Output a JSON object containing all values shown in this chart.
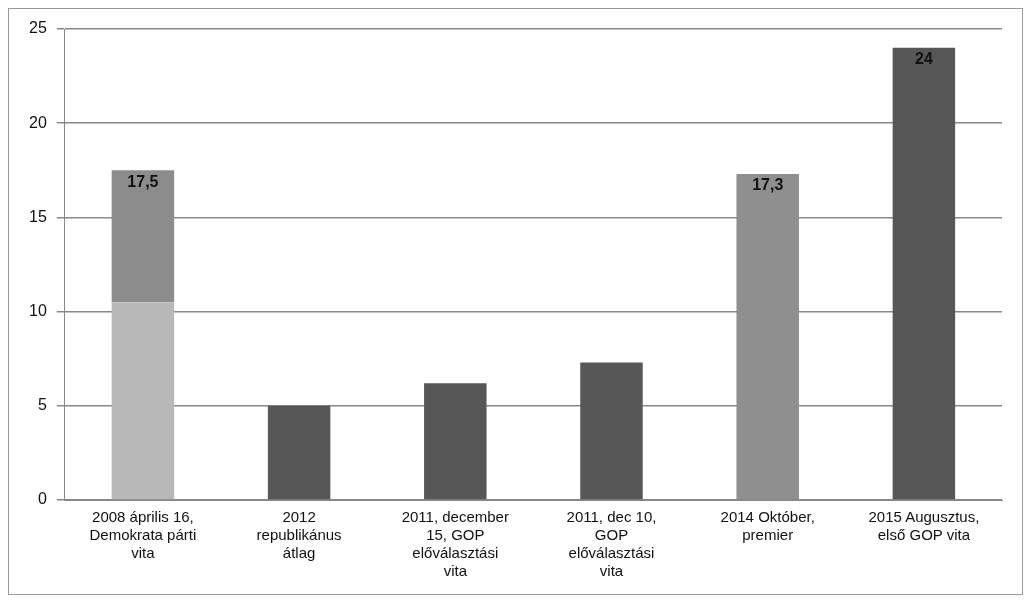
{
  "chart_data": {
    "type": "bar",
    "stacked": true,
    "categories": [
      "2008 április 16, Demokrata párti vita",
      "2012 republikánus átlag",
      "2011, december 15, GOP előválasztási vita",
      "2011, dec 10, GOP előválasztási vita",
      "2014 Október, premier",
      "2015 Augusztus, első GOP vita"
    ],
    "series": [
      {
        "colors": [
          "#b8b8b8",
          "#575757",
          "#575757",
          "#575757",
          "#8f8f8f",
          "#575757"
        ],
        "values": [
          10.5,
          5,
          6.2,
          7.3,
          17.3,
          24
        ]
      },
      {
        "color": "#8c8c8c",
        "values": [
          7,
          null,
          null,
          null,
          null,
          null
        ]
      }
    ],
    "totals": [
      "17,5",
      null,
      null,
      null,
      "17,3",
      "24"
    ],
    "ylim": [
      0,
      25
    ],
    "yticks": [
      0,
      5,
      10,
      15,
      20,
      25
    ],
    "grid": "y",
    "legend": false
  }
}
